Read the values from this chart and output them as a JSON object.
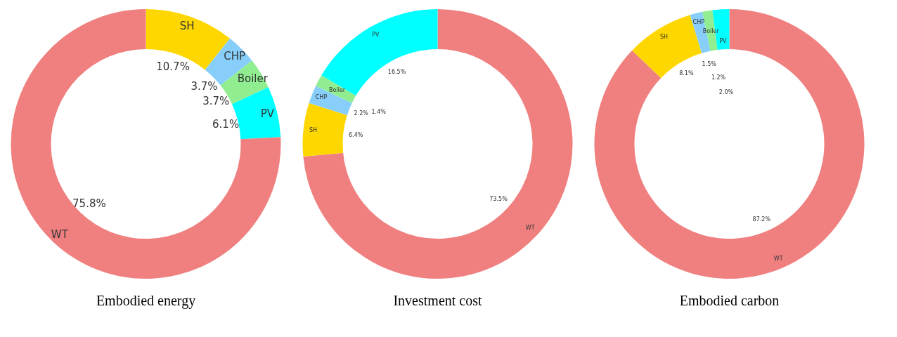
{
  "chart_data": [
    {
      "type": "donut",
      "title": "Embodied energy",
      "categories": [
        "SH",
        "CHP",
        "Boiler",
        "PV",
        "WT"
      ],
      "values": [
        10.7,
        3.7,
        3.7,
        6.1,
        75.8
      ],
      "value_labels": [
        "10.7%",
        "3.7%",
        "3.7%",
        "6.1%",
        "75.8%"
      ],
      "colors": [
        "#ffd700",
        "#87cefa",
        "#90ee90",
        "#00ffff",
        "#f08080"
      ]
    },
    {
      "type": "donut",
      "title": "Investment cost",
      "categories": [
        "WT",
        "SH",
        "CHP",
        "Boiler",
        "PV"
      ],
      "values": [
        73.5,
        6.4,
        2.2,
        1.4,
        16.5
      ],
      "value_labels": [
        "73.5%",
        "6.4%",
        "2.2%",
        "1.4%",
        "16.5%"
      ],
      "colors": [
        "#f08080",
        "#ffd700",
        "#87cefa",
        "#90ee90",
        "#00ffff"
      ]
    },
    {
      "type": "donut",
      "title": "Embodied carbon",
      "categories": [
        "WT",
        "SH",
        "CHP",
        "Boiler",
        "PV"
      ],
      "values": [
        87.2,
        8.1,
        1.5,
        1.2,
        2.0
      ],
      "value_labels": [
        "87.2%",
        "8.1%",
        "1.5%",
        "1.2%",
        "2.0%"
      ],
      "colors": [
        "#f08080",
        "#ffd700",
        "#87cefa",
        "#90ee90",
        "#00ffff"
      ]
    }
  ]
}
